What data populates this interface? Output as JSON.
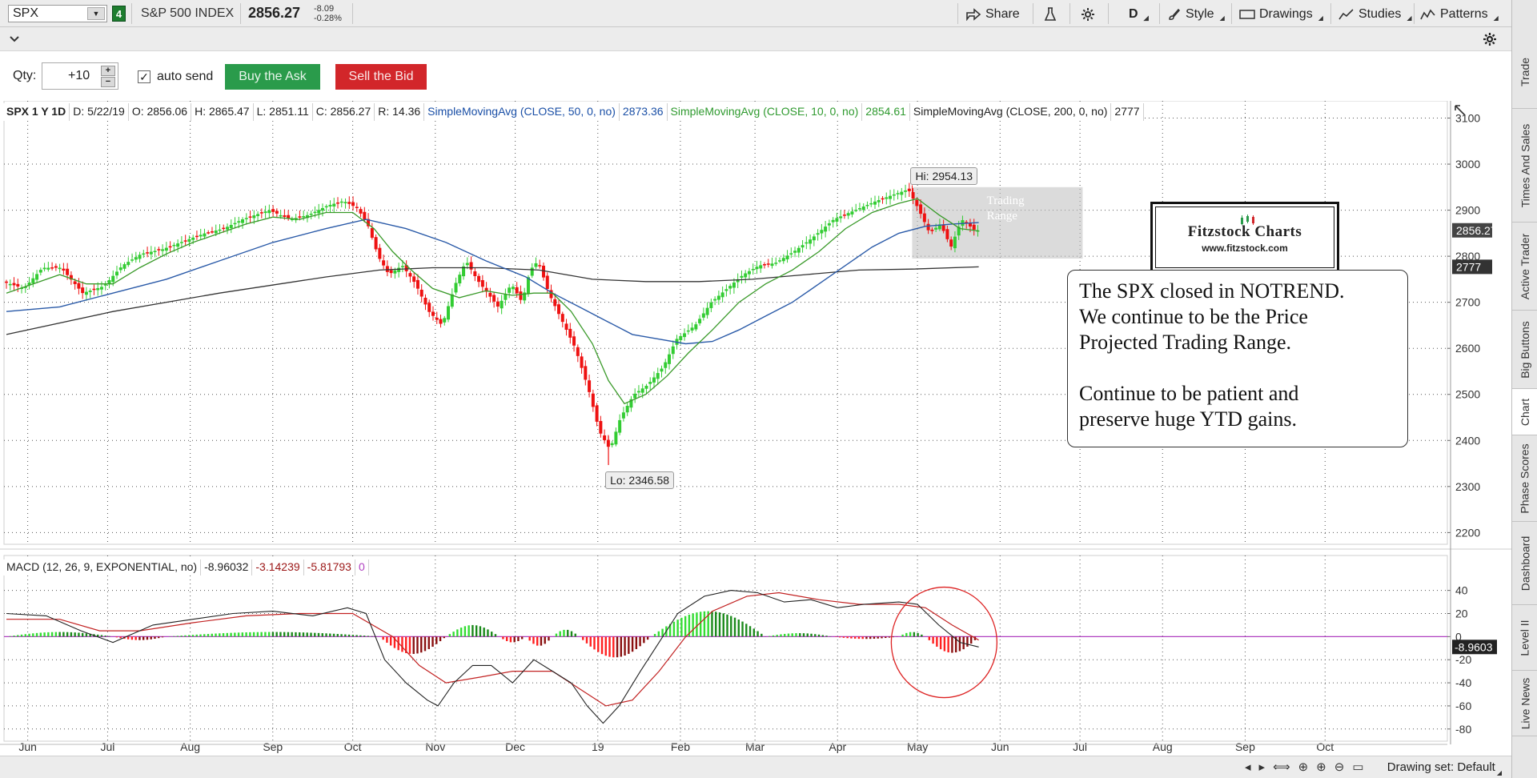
{
  "toolbar": {
    "symbol": "SPX",
    "link_badge": "4",
    "description": "S&P 500 INDEX",
    "last": "2856.27",
    "net_change": "-8.09",
    "pct_change": "-0.28%",
    "share": "Share",
    "period": "D",
    "style": "Style",
    "drawings": "Drawings",
    "studies": "Studies",
    "patterns": "Patterns"
  },
  "order": {
    "qty_label": "Qty:",
    "qty_value": "+10",
    "auto_send": "auto send",
    "buy": "Buy the Ask",
    "sell": "Sell the Bid"
  },
  "chart_header": {
    "title": "SPX 1 Y 1D",
    "date": "D: 5/22/19",
    "open": "O: 2856.06",
    "high": "H: 2865.47",
    "low": "L: 2851.11",
    "close": "C: 2856.27",
    "range": "R: 14.36",
    "sma50_label": "SimpleMovingAvg (CLOSE, 50, 0, no)",
    "sma50_value": "2873.36",
    "sma10_label": "SimpleMovingAvg (CLOSE, 10, 0, no)",
    "sma10_value": "2854.61",
    "sma200_label": "SimpleMovingAvg (CLOSE, 200, 0, no)",
    "sma200_value": "2777"
  },
  "macd_header": {
    "label": "MACD (12, 26, 9, EXPONENTIAL, no)",
    "value": "-8.96032",
    "avg": "-3.14239",
    "diff": "-5.81793",
    "zero": "0"
  },
  "annotations": {
    "hi": "Hi: 2954.13",
    "lo": "Lo: 2346.58",
    "trading_range_1": "Trading",
    "trading_range_2": "Range",
    "logo_title": "Fitzstock Charts",
    "logo_url": "www.fitzstock.com",
    "note_lines": [
      "The SPX closed in NOTREND.",
      "We continue to be the Price",
      "Projected Trading Range.",
      "Continue to be patient and",
      "preserve huge YTD gains."
    ]
  },
  "side_tabs": [
    "Trade",
    "Times And Sales",
    "Active Trader",
    "Big Buttons",
    "Chart",
    "Phase Scores",
    "Dashboard",
    "Level II",
    "Live News"
  ],
  "bottom": {
    "drawing_set": "Drawing set: Default"
  },
  "colors": {
    "up": "#33cc33",
    "down": "#ee1111",
    "sma10": "#3a9a2a",
    "sma50": "#2a5aa8",
    "sma200": "#333333",
    "macd": "#222222",
    "signal": "#c22222",
    "zero_line": "#b040c0"
  },
  "chart_data": [
    {
      "type": "candlestick",
      "title": "SPX 1 Y 1D",
      "x_tick_labels": [
        "Jun",
        "Jul",
        "Aug",
        "Sep",
        "Oct",
        "Nov",
        "Dec",
        "19",
        "Feb",
        "Mar",
        "Apr",
        "May",
        "Jun",
        "Jul",
        "Aug",
        "Sep",
        "Oct"
      ],
      "x_tick_days": [
        8,
        38,
        69,
        100,
        130,
        161,
        191,
        222,
        253,
        281,
        312,
        342,
        373,
        403,
        434,
        465,
        495
      ],
      "y_ticks": [
        2200,
        2300,
        2400,
        2500,
        2600,
        2700,
        2800,
        2900,
        3000,
        3100
      ],
      "ylim": [
        2185,
        3120
      ],
      "x_range_days": [
        0,
        540
      ],
      "last_price_tag": "2856.27",
      "sma200_tag": "2777",
      "hi": 2954.13,
      "lo": 2346.58,
      "close_path": [
        [
          0,
          2745
        ],
        [
          8,
          2730
        ],
        [
          15,
          2775
        ],
        [
          22,
          2775
        ],
        [
          30,
          2720
        ],
        [
          38,
          2735
        ],
        [
          45,
          2780
        ],
        [
          52,
          2805
        ],
        [
          60,
          2815
        ],
        [
          69,
          2835
        ],
        [
          76,
          2850
        ],
        [
          83,
          2860
        ],
        [
          90,
          2880
        ],
        [
          100,
          2900
        ],
        [
          108,
          2880
        ],
        [
          115,
          2890
        ],
        [
          122,
          2910
        ],
        [
          128,
          2920
        ],
        [
          133,
          2905
        ],
        [
          137,
          2870
        ],
        [
          141,
          2800
        ],
        [
          145,
          2760
        ],
        [
          150,
          2780
        ],
        [
          155,
          2740
        ],
        [
          160,
          2680
        ],
        [
          165,
          2650
        ],
        [
          170,
          2740
        ],
        [
          174,
          2790
        ],
        [
          178,
          2750
        ],
        [
          182,
          2720
        ],
        [
          186,
          2690
        ],
        [
          191,
          2740
        ],
        [
          195,
          2700
        ],
        [
          198,
          2770
        ],
        [
          201,
          2790
        ],
        [
          205,
          2720
        ],
        [
          210,
          2660
        ],
        [
          215,
          2600
        ],
        [
          220,
          2510
        ],
        [
          224,
          2420
        ],
        [
          228,
          2380
        ],
        [
          232,
          2450
        ],
        [
          237,
          2500
        ],
        [
          242,
          2520
        ],
        [
          248,
          2560
        ],
        [
          253,
          2620
        ],
        [
          260,
          2650
        ],
        [
          266,
          2700
        ],
        [
          272,
          2730
        ],
        [
          278,
          2760
        ],
        [
          284,
          2780
        ],
        [
          290,
          2785
        ],
        [
          297,
          2810
        ],
        [
          304,
          2840
        ],
        [
          312,
          2880
        ],
        [
          320,
          2900
        ],
        [
          328,
          2920
        ],
        [
          335,
          2935
        ],
        [
          340,
          2945
        ],
        [
          344,
          2900
        ],
        [
          348,
          2850
        ],
        [
          352,
          2870
        ],
        [
          356,
          2820
        ],
        [
          360,
          2880
        ],
        [
          365,
          2856
        ]
      ],
      "sma10": [
        [
          0,
          2720
        ],
        [
          10,
          2740
        ],
        [
          20,
          2760
        ],
        [
          30,
          2740
        ],
        [
          40,
          2740
        ],
        [
          50,
          2775
        ],
        [
          60,
          2805
        ],
        [
          70,
          2830
        ],
        [
          80,
          2850
        ],
        [
          90,
          2870
        ],
        [
          100,
          2885
        ],
        [
          110,
          2880
        ],
        [
          120,
          2895
        ],
        [
          130,
          2895
        ],
        [
          138,
          2860
        ],
        [
          145,
          2810
        ],
        [
          152,
          2770
        ],
        [
          160,
          2730
        ],
        [
          170,
          2710
        ],
        [
          180,
          2725
        ],
        [
          190,
          2715
        ],
        [
          198,
          2720
        ],
        [
          205,
          2720
        ],
        [
          212,
          2680
        ],
        [
          220,
          2610
        ],
        [
          226,
          2530
        ],
        [
          232,
          2480
        ],
        [
          240,
          2500
        ],
        [
          248,
          2540
        ],
        [
          256,
          2590
        ],
        [
          265,
          2640
        ],
        [
          275,
          2700
        ],
        [
          285,
          2740
        ],
        [
          295,
          2770
        ],
        [
          305,
          2810
        ],
        [
          315,
          2860
        ],
        [
          325,
          2895
        ],
        [
          335,
          2915
        ],
        [
          342,
          2925
        ],
        [
          350,
          2890
        ],
        [
          358,
          2860
        ],
        [
          365,
          2855
        ]
      ],
      "sma50": [
        [
          0,
          2680
        ],
        [
          20,
          2690
        ],
        [
          40,
          2720
        ],
        [
          60,
          2750
        ],
        [
          80,
          2790
        ],
        [
          100,
          2830
        ],
        [
          120,
          2860
        ],
        [
          135,
          2880
        ],
        [
          150,
          2860
        ],
        [
          165,
          2830
        ],
        [
          180,
          2790
        ],
        [
          195,
          2755
        ],
        [
          205,
          2720
        ],
        [
          215,
          2690
        ],
        [
          225,
          2660
        ],
        [
          235,
          2630
        ],
        [
          245,
          2620
        ],
        [
          255,
          2610
        ],
        [
          265,
          2615
        ],
        [
          275,
          2640
        ],
        [
          285,
          2670
        ],
        [
          295,
          2700
        ],
        [
          305,
          2740
        ],
        [
          315,
          2780
        ],
        [
          325,
          2820
        ],
        [
          335,
          2850
        ],
        [
          345,
          2865
        ],
        [
          355,
          2870
        ],
        [
          365,
          2873
        ]
      ],
      "sma200": [
        [
          0,
          2630
        ],
        [
          40,
          2680
        ],
        [
          80,
          2720
        ],
        [
          120,
          2755
        ],
        [
          140,
          2770
        ],
        [
          160,
          2775
        ],
        [
          180,
          2775
        ],
        [
          200,
          2770
        ],
        [
          220,
          2750
        ],
        [
          240,
          2745
        ],
        [
          260,
          2745
        ],
        [
          280,
          2750
        ],
        [
          300,
          2760
        ],
        [
          320,
          2770
        ],
        [
          340,
          2772
        ],
        [
          365,
          2777
        ]
      ]
    },
    {
      "type": "macd",
      "title": "MACD (12, 26, 9, EXPONENTIAL, no)",
      "y_ticks": [
        -80,
        -60,
        -40,
        -20,
        0,
        20,
        40
      ],
      "ylim": [
        -85,
        55
      ],
      "value_tag": "-8.9603",
      "macd": [
        [
          0,
          20
        ],
        [
          15,
          18
        ],
        [
          28,
          5
        ],
        [
          40,
          -5
        ],
        [
          55,
          10
        ],
        [
          70,
          15
        ],
        [
          85,
          20
        ],
        [
          100,
          22
        ],
        [
          115,
          18
        ],
        [
          128,
          25
        ],
        [
          135,
          20
        ],
        [
          142,
          -20
        ],
        [
          150,
          -40
        ],
        [
          158,
          -55
        ],
        [
          162,
          -60
        ],
        [
          168,
          -40
        ],
        [
          175,
          -25
        ],
        [
          182,
          -25
        ],
        [
          190,
          -40
        ],
        [
          198,
          -20
        ],
        [
          205,
          -30
        ],
        [
          212,
          -40
        ],
        [
          218,
          -60
        ],
        [
          224,
          -75
        ],
        [
          230,
          -60
        ],
        [
          238,
          -30
        ],
        [
          245,
          -5
        ],
        [
          252,
          20
        ],
        [
          262,
          35
        ],
        [
          272,
          40
        ],
        [
          282,
          38
        ],
        [
          292,
          30
        ],
        [
          302,
          32
        ],
        [
          312,
          25
        ],
        [
          322,
          28
        ],
        [
          335,
          30
        ],
        [
          342,
          28
        ],
        [
          350,
          10
        ],
        [
          358,
          -5
        ],
        [
          365,
          -9
        ]
      ],
      "signal": [
        [
          0,
          15
        ],
        [
          20,
          15
        ],
        [
          35,
          5
        ],
        [
          50,
          5
        ],
        [
          70,
          12
        ],
        [
          90,
          18
        ],
        [
          110,
          20
        ],
        [
          130,
          20
        ],
        [
          145,
          0
        ],
        [
          155,
          -25
        ],
        [
          165,
          -40
        ],
        [
          178,
          -35
        ],
        [
          190,
          -30
        ],
        [
          205,
          -30
        ],
        [
          215,
          -45
        ],
        [
          225,
          -60
        ],
        [
          235,
          -55
        ],
        [
          245,
          -30
        ],
        [
          255,
          0
        ],
        [
          265,
          22
        ],
        [
          278,
          35
        ],
        [
          290,
          38
        ],
        [
          305,
          32
        ],
        [
          320,
          28
        ],
        [
          335,
          28
        ],
        [
          345,
          25
        ],
        [
          355,
          10
        ],
        [
          365,
          -3
        ]
      ],
      "hist_segments": [
        [
          0,
          40,
          4
        ],
        [
          40,
          60,
          -3
        ],
        [
          60,
          140,
          4
        ],
        [
          140,
          165,
          -15
        ],
        [
          165,
          185,
          10
        ],
        [
          185,
          195,
          -5
        ],
        [
          195,
          205,
          -8
        ],
        [
          205,
          215,
          6
        ],
        [
          215,
          242,
          -18
        ],
        [
          242,
          285,
          22
        ],
        [
          285,
          310,
          3
        ],
        [
          310,
          335,
          -2
        ],
        [
          335,
          345,
          4
        ],
        [
          345,
          365,
          -14
        ]
      ]
    }
  ]
}
